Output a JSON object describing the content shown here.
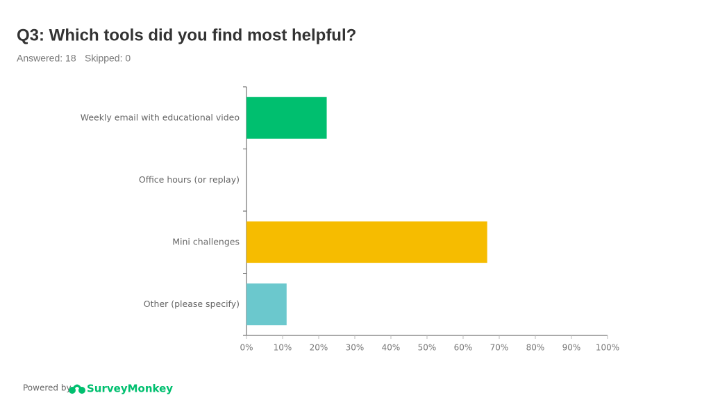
{
  "chart_data": {
    "type": "bar",
    "orientation": "horizontal",
    "title": "Q3: Which tools did you find most helpful?",
    "answered": "Answered: 18",
    "skipped": "Skipped: 0",
    "categories": [
      "Weekly email with educational video",
      "Office hours (or replay)",
      "Mini challenges",
      "Other (please specify)"
    ],
    "values": [
      22.22,
      0,
      66.67,
      11.11
    ],
    "colors": [
      "#00bf6f",
      "#507cb6",
      "#f6bc00",
      "#6bc8cd"
    ],
    "xlim": [
      0,
      100
    ],
    "xticks": [
      {
        "value": 0,
        "label": "0%"
      },
      {
        "value": 10,
        "label": "10%"
      },
      {
        "value": 20,
        "label": "20%"
      },
      {
        "value": 30,
        "label": "30%"
      },
      {
        "value": 40,
        "label": "40%"
      },
      {
        "value": 50,
        "label": "50%"
      },
      {
        "value": 60,
        "label": "60%"
      },
      {
        "value": 70,
        "label": "70%"
      },
      {
        "value": 80,
        "label": "80%"
      },
      {
        "value": 90,
        "label": "90%"
      },
      {
        "value": 100,
        "label": "100%"
      }
    ],
    "grid": false
  },
  "footer": {
    "powered_by": "Powered by",
    "brand": "SurveyMonkey"
  }
}
